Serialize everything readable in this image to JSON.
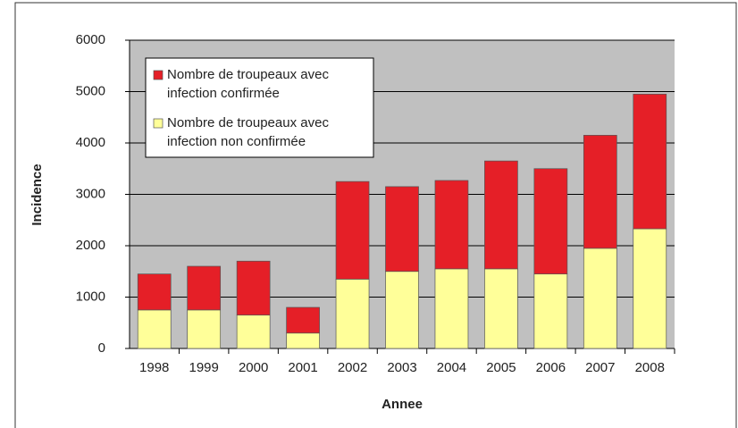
{
  "chart_data": {
    "type": "stacked_bar",
    "x_label": "Annee",
    "y_label": "Incidence",
    "categories": [
      "1998",
      "1999",
      "2000",
      "2001",
      "2002",
      "2003",
      "2004",
      "2005",
      "2006",
      "2007",
      "2008"
    ],
    "series": [
      {
        "name": "Nombre de troupeaux avec infection non confirmée",
        "color": "#ffff99",
        "values": [
          750,
          750,
          650,
          300,
          1350,
          1500,
          1550,
          1550,
          1450,
          1950,
          2330
        ]
      },
      {
        "name": "Nombre de troupeaux avec infection confirmée",
        "color": "#e51f27",
        "values": [
          700,
          850,
          1050,
          500,
          1900,
          1650,
          1720,
          2100,
          2050,
          2200,
          2620
        ]
      }
    ],
    "ylim": [
      0,
      6000
    ],
    "yticks": [
      0,
      1000,
      2000,
      3000,
      4000,
      5000,
      6000
    ],
    "grid": true
  }
}
